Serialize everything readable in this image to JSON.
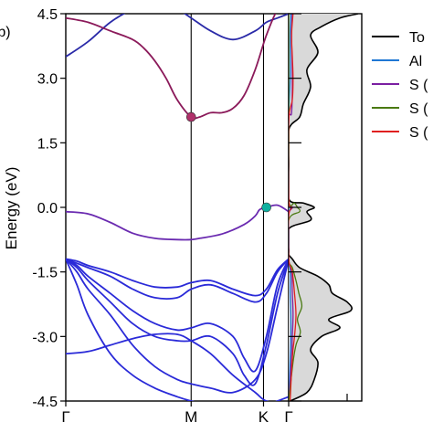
{
  "chart_data": [
    {
      "type": "line",
      "panel_label": "(b)",
      "ylabel": "Energy (eV)",
      "ylim": [
        -4.5,
        4.5
      ],
      "yticks": [
        4.5,
        3.0,
        1.5,
        0.0,
        -1.5,
        -3.0,
        -4.5
      ],
      "ytick_labels": [
        "4.5",
        "3.0",
        "1.5",
        "0.0",
        "-1.5",
        "-3.0",
        "-4.5"
      ],
      "xlim": [
        0,
        1
      ],
      "kpoints": [
        {
          "label": "Γ",
          "x": 0.0
        },
        {
          "label": "M",
          "x": 0.5625
        },
        {
          "label": "K",
          "x": 0.8872
        },
        {
          "label": "Γ",
          "x": 1.0
        }
      ],
      "bands": [
        {
          "name": "upper-1",
          "color": "#2a2aa8",
          "x": [
            0,
            0.1,
            0.2,
            0.3,
            0.4,
            0.5,
            0.5625,
            0.65,
            0.75,
            0.85,
            0.9,
            0.95,
            1.0
          ],
          "y": [
            3.5,
            3.85,
            4.3,
            4.6,
            4.75,
            4.6,
            4.4,
            4.1,
            3.9,
            4.1,
            4.3,
            4.4,
            4.5
          ]
        },
        {
          "name": "upper-2",
          "color": "#8b1a5a",
          "x": [
            0,
            0.1,
            0.2,
            0.3,
            0.35,
            0.4,
            0.45,
            0.5,
            0.5625,
            0.6,
            0.65,
            0.7,
            0.75,
            0.8,
            0.85,
            0.9,
            0.95,
            1.0
          ],
          "y": [
            4.4,
            4.3,
            4.1,
            3.9,
            3.7,
            3.4,
            3.0,
            2.5,
            2.1,
            2.1,
            2.2,
            2.2,
            2.3,
            2.6,
            3.2,
            4.0,
            4.6,
            4.9
          ]
        },
        {
          "name": "upper-3",
          "color": "#1f1f8f",
          "x": [
            0,
            0.2,
            0.35,
            0.5,
            0.5625,
            0.65,
            0.8,
            0.9,
            1.0
          ],
          "y": [
            4.9,
            4.95,
            4.7,
            4.55,
            4.55,
            4.6,
            4.7,
            4.9,
            5.0
          ]
        },
        {
          "name": "valence-top",
          "color": "#6a2ab0",
          "x": [
            0,
            0.1,
            0.2,
            0.3,
            0.4,
            0.5,
            0.5625,
            0.6,
            0.7,
            0.8,
            0.85,
            0.87,
            0.9,
            0.95,
            1.0
          ],
          "y": [
            -0.1,
            -0.15,
            -0.35,
            -0.6,
            -0.72,
            -0.75,
            -0.75,
            -0.72,
            -0.62,
            -0.4,
            -0.2,
            -0.05,
            0.0,
            0.05,
            -0.1
          ]
        },
        {
          "name": "vb-1",
          "color": "#2a2ad8",
          "x": [
            0,
            0.05,
            0.1,
            0.2,
            0.3,
            0.4,
            0.5,
            0.5625,
            0.65,
            0.75,
            0.8,
            0.85,
            0.9,
            0.95,
            1.0
          ],
          "y": [
            -1.2,
            -1.35,
            -1.6,
            -2.0,
            -2.4,
            -2.7,
            -2.85,
            -2.8,
            -2.7,
            -3.0,
            -3.5,
            -3.8,
            -3.0,
            -1.8,
            -1.2
          ]
        },
        {
          "name": "vb-2",
          "color": "#2a2ad8",
          "x": [
            0,
            0.05,
            0.1,
            0.2,
            0.3,
            0.4,
            0.5,
            0.5625,
            0.65,
            0.75,
            0.8,
            0.85,
            0.9,
            0.95,
            1.0
          ],
          "y": [
            -1.2,
            -1.4,
            -1.7,
            -2.2,
            -2.7,
            -3.0,
            -3.1,
            -3.1,
            -3.0,
            -3.4,
            -3.9,
            -4.1,
            -3.2,
            -2.0,
            -1.2
          ]
        },
        {
          "name": "vb-3",
          "color": "#2a2ad8",
          "x": [
            0,
            0.05,
            0.1,
            0.2,
            0.3,
            0.4,
            0.5,
            0.5625,
            0.65,
            0.75,
            0.85,
            0.9,
            0.95,
            1.0
          ],
          "y": [
            -1.2,
            -1.5,
            -1.9,
            -2.5,
            -3.2,
            -3.7,
            -4.0,
            -4.1,
            -4.2,
            -4.3,
            -4.0,
            -3.4,
            -2.3,
            -1.2
          ]
        },
        {
          "name": "vb-4",
          "color": "#2a2ad8",
          "x": [
            0,
            0.05,
            0.1,
            0.2,
            0.3,
            0.4,
            0.5,
            0.5625,
            0.65,
            0.75,
            0.85,
            0.9,
            0.95,
            1.0
          ],
          "y": [
            -1.2,
            -1.3,
            -1.4,
            -1.6,
            -1.9,
            -2.1,
            -2.1,
            -1.9,
            -1.8,
            -2.0,
            -2.2,
            -2.0,
            -1.5,
            -1.2
          ]
        },
        {
          "name": "vb-5",
          "color": "#2a2ad8",
          "x": [
            0,
            0.05,
            0.1,
            0.2,
            0.3,
            0.4,
            0.5,
            0.5625,
            0.65,
            0.75,
            0.85,
            0.9,
            0.95,
            1.0
          ],
          "y": [
            -1.2,
            -1.25,
            -1.35,
            -1.5,
            -1.7,
            -1.85,
            -1.85,
            -1.75,
            -1.7,
            -1.9,
            -2.05,
            -1.9,
            -1.45,
            -1.2
          ]
        },
        {
          "name": "vb-6",
          "color": "#2a2ad8",
          "x": [
            0,
            0.1,
            0.2,
            0.3,
            0.4,
            0.5,
            0.5625,
            0.65,
            0.75,
            0.85,
            0.9,
            1.0
          ],
          "y": [
            -3.4,
            -3.35,
            -3.2,
            -3.05,
            -2.95,
            -2.95,
            -3.1,
            -3.4,
            -3.9,
            -4.3,
            -4.5,
            -4.6
          ]
        },
        {
          "name": "vb-7",
          "color": "#2a2ad8",
          "x": [
            0,
            0.05,
            0.1,
            0.2,
            0.3,
            0.4,
            0.5,
            0.5625,
            0.65,
            0.75,
            0.85,
            0.9,
            0.95,
            1.0
          ],
          "y": [
            -1.2,
            -1.8,
            -2.5,
            -3.4,
            -3.9,
            -4.2,
            -4.4,
            -4.5,
            -4.6,
            -4.7,
            -4.7,
            -4.6,
            -4.5,
            -4.4
          ]
        }
      ],
      "markers": [
        {
          "name": "cbm",
          "x": 0.5625,
          "y": 2.1,
          "color": "#b0306a"
        },
        {
          "name": "vbm",
          "x": 0.9,
          "y": 0.0,
          "color": "#10b0a0"
        }
      ]
    },
    {
      "type": "area",
      "ylim": [
        -4.5,
        4.5
      ],
      "xlim": [
        0,
        1
      ],
      "legend_location": "right",
      "series": [
        {
          "name": "Total",
          "legend": "To",
          "color": "#000000",
          "fill": "#d9d9d9",
          "y": [
            -4.5,
            -4.3,
            -4.0,
            -3.6,
            -3.3,
            -3.0,
            -2.8,
            -2.6,
            -2.4,
            -2.2,
            -2.0,
            -1.8,
            -1.6,
            -1.4,
            -1.2,
            -1.1,
            -1.0,
            -0.5,
            -0.3,
            -0.1,
            0.0,
            0.1,
            0.2,
            1.0,
            1.8,
            2.1,
            2.4,
            2.8,
            3.2,
            3.6,
            4.0,
            4.2,
            4.4,
            4.5
          ],
          "x": [
            0.02,
            0.25,
            0.35,
            0.4,
            0.3,
            0.45,
            0.7,
            0.55,
            0.85,
            0.8,
            0.6,
            0.55,
            0.4,
            0.15,
            0.05,
            0.0,
            0.0,
            0.0,
            0.3,
            0.25,
            0.35,
            0.2,
            0.0,
            0.0,
            0.0,
            0.15,
            0.2,
            0.3,
            0.25,
            0.4,
            0.3,
            0.45,
            0.7,
            0.95
          ]
        },
        {
          "name": "Al",
          "legend": "Al",
          "color": "#1f77d4",
          "y": [
            -4.5,
            -3.5,
            -3.0,
            -2.5,
            -2.0,
            -1.5,
            -1.2,
            -0.2,
            0.0,
            0.2,
            2.0,
            3.0,
            4.0,
            4.5
          ],
          "x": [
            0.0,
            0.02,
            0.03,
            0.03,
            0.02,
            0.02,
            0.0,
            0.0,
            0.02,
            0.0,
            0.0,
            0.02,
            0.02,
            0.03
          ]
        },
        {
          "name": "S-1",
          "legend": "S (",
          "color": "#7b1fa2",
          "y": [
            -4.5,
            -3.5,
            -3.0,
            -2.5,
            -2.0,
            -1.5,
            -1.2,
            -0.2,
            0.0,
            0.2,
            2.0,
            2.2,
            3.0,
            4.0,
            4.5
          ],
          "x": [
            0.0,
            0.04,
            0.05,
            0.06,
            0.05,
            0.04,
            0.0,
            0.0,
            0.05,
            0.0,
            0.0,
            0.04,
            0.05,
            0.04,
            0.05
          ]
        },
        {
          "name": "S-2",
          "legend": "S (",
          "color": "#4a7a12",
          "y": [
            -4.5,
            -3.6,
            -3.2,
            -2.9,
            -2.6,
            -2.3,
            -2.0,
            -1.7,
            -1.4,
            -1.2,
            -0.3,
            -0.1,
            0.0,
            0.1,
            0.2,
            2.0,
            4.5
          ],
          "x": [
            0.0,
            0.06,
            0.1,
            0.16,
            0.12,
            0.18,
            0.14,
            0.1,
            0.05,
            0.0,
            0.0,
            0.15,
            0.12,
            0.08,
            0.0,
            0.0,
            0.0
          ]
        },
        {
          "name": "S-3",
          "legend": "S (",
          "color": "#e02020",
          "y": [
            -4.5,
            -3.5,
            -3.0,
            -2.5,
            -2.0,
            -1.5,
            -1.2,
            -0.2,
            0.0,
            0.2,
            2.0,
            2.5,
            3.0,
            3.5,
            4.0,
            4.5
          ],
          "x": [
            0.02,
            0.05,
            0.08,
            0.1,
            0.08,
            0.05,
            0.0,
            0.0,
            0.04,
            0.0,
            0.0,
            0.05,
            0.06,
            0.05,
            0.04,
            0.06
          ]
        }
      ]
    }
  ]
}
